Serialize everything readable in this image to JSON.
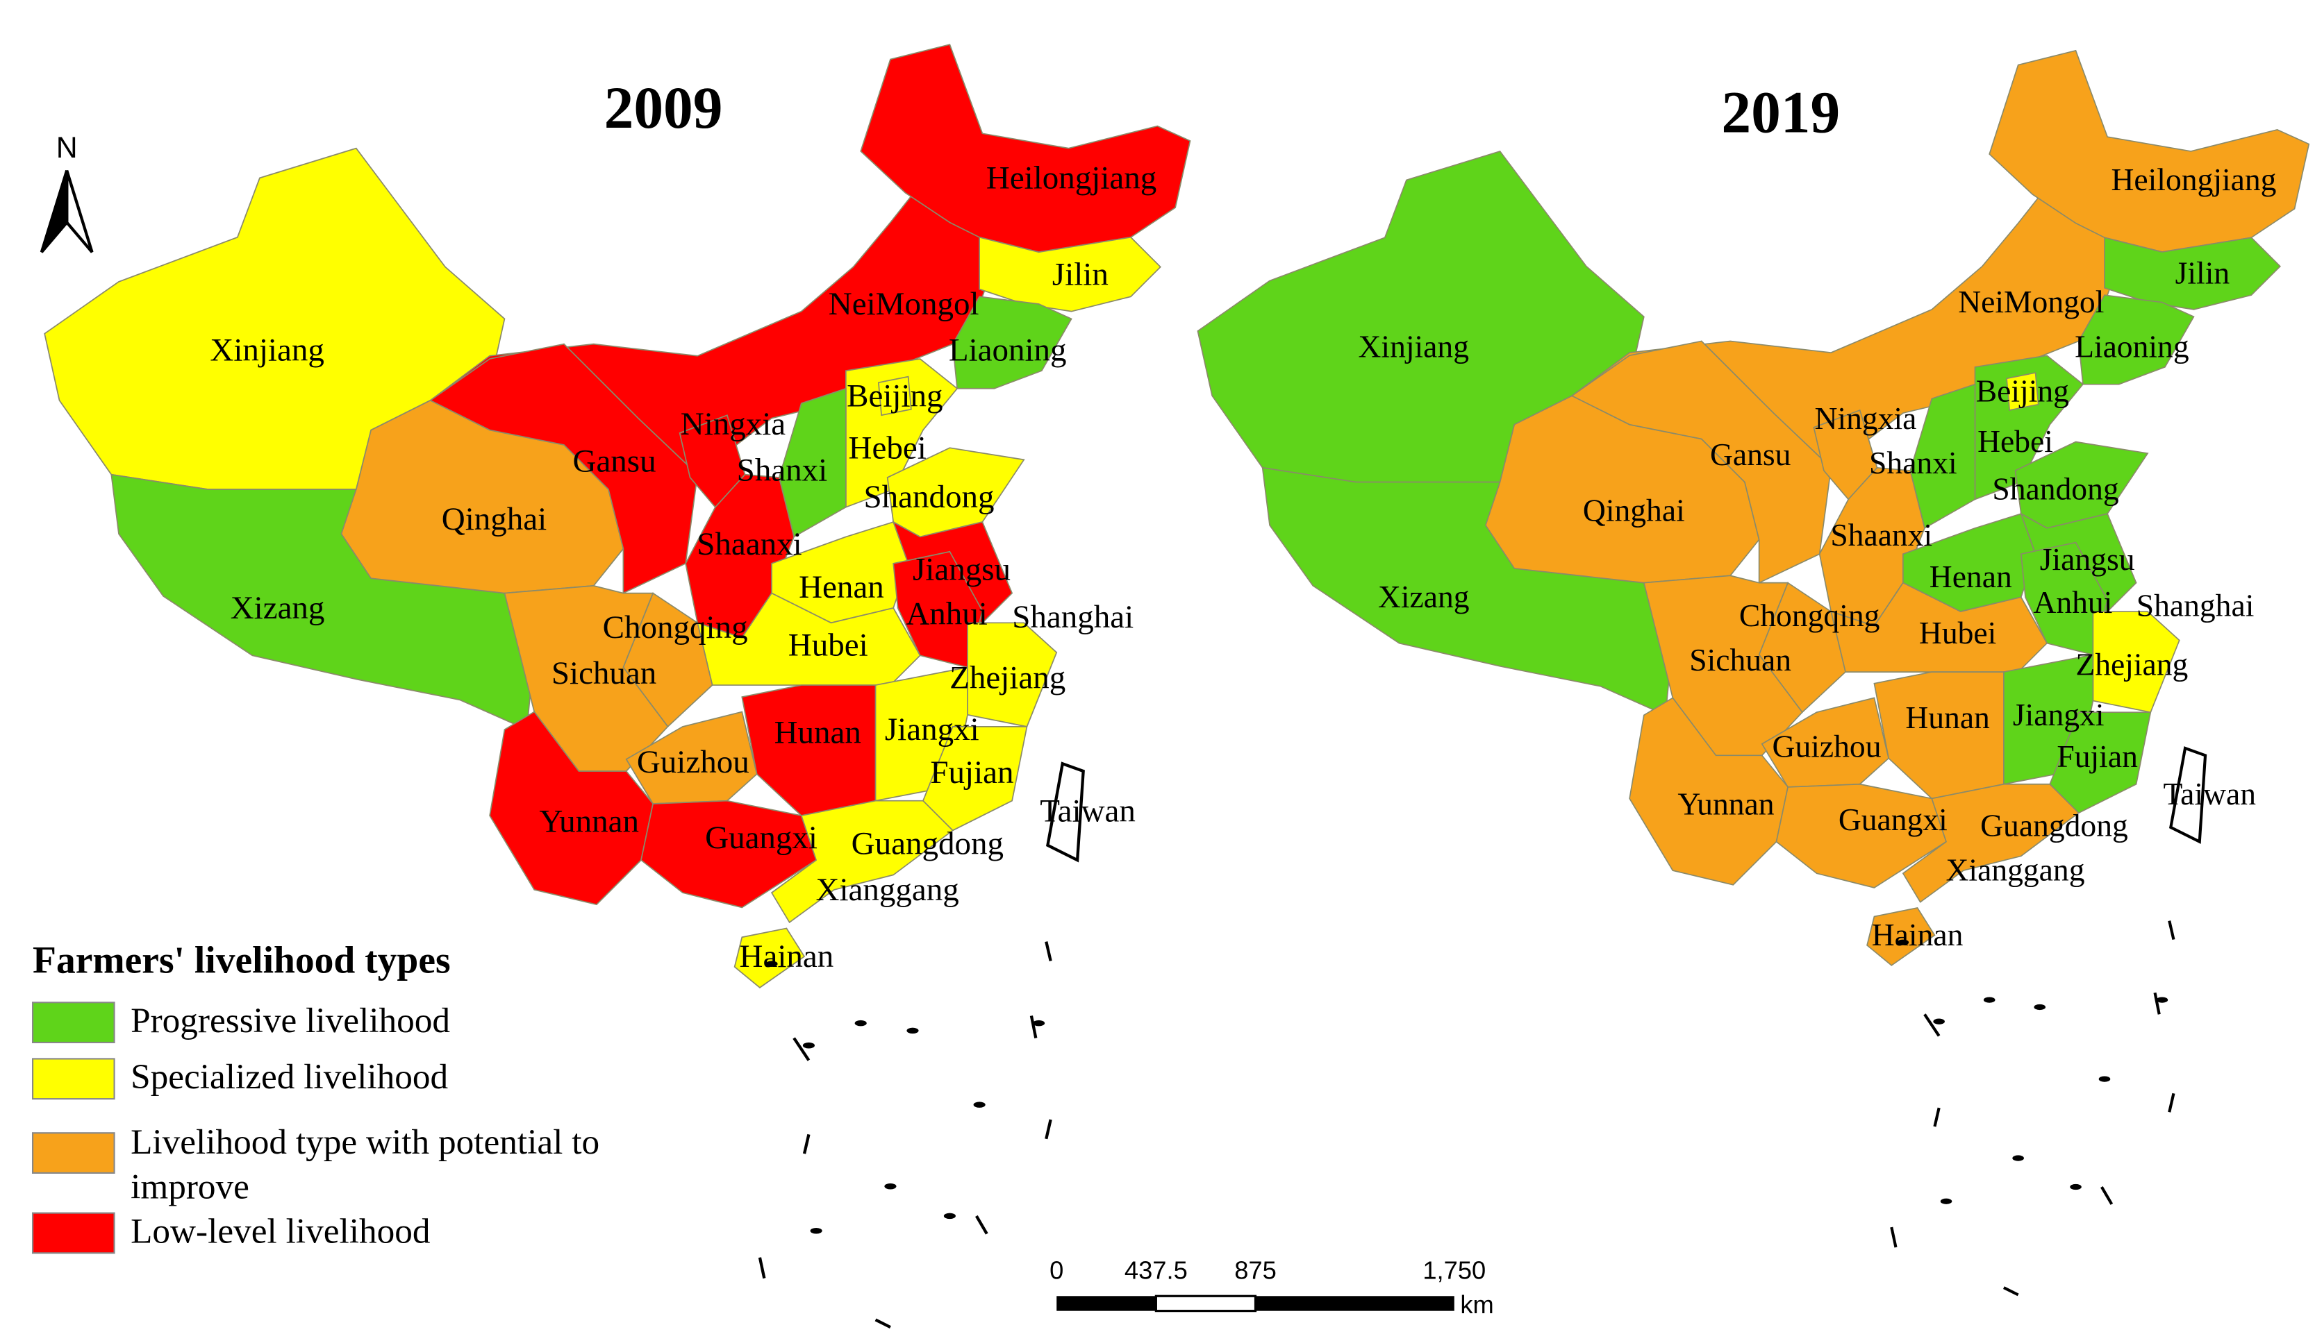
{
  "north_label": "N",
  "legend": {
    "title": "Farmers' livelihood types",
    "items": [
      {
        "label": "Progressive livelihood",
        "color": "#5fd41a"
      },
      {
        "label": "Specialized livelihood",
        "color": "#ffff00"
      },
      {
        "label": "Livelihood type with potential to improve",
        "color": "#f7a21b"
      },
      {
        "label": "Low-level livelihood",
        "color": "#ff0000"
      }
    ]
  },
  "scale_bar": {
    "labels": [
      "0",
      "437.5",
      "875",
      "1,750"
    ],
    "unit": "km"
  },
  "maps": [
    {
      "title": "2009",
      "regions": [
        {
          "name": "Xinjiang",
          "type": 1
        },
        {
          "name": "Xizang",
          "type": 0
        },
        {
          "name": "Qinghai",
          "type": 2
        },
        {
          "name": "NeiMongol",
          "type": 3
        },
        {
          "name": "Gansu",
          "type": 3
        },
        {
          "name": "Ningxia",
          "type": 3
        },
        {
          "name": "Heilongjiang",
          "type": 3
        },
        {
          "name": "Jilin",
          "type": 1
        },
        {
          "name": "Liaoning",
          "type": 0
        },
        {
          "name": "Hebei",
          "type": 1
        },
        {
          "name": "Beijing",
          "type": 1
        },
        {
          "name": "Shanxi",
          "type": 0
        },
        {
          "name": "Shaanxi",
          "type": 3
        },
        {
          "name": "Shandong",
          "type": 1
        },
        {
          "name": "Henan",
          "type": 1
        },
        {
          "name": "Jiangsu",
          "type": 3
        },
        {
          "name": "Anhui",
          "type": 3
        },
        {
          "name": "Shanghai",
          "type": 1
        },
        {
          "name": "Hubei",
          "type": 1
        },
        {
          "name": "Chongqing",
          "type": 2
        },
        {
          "name": "Sichuan",
          "type": 2
        },
        {
          "name": "Zhejiang",
          "type": 1
        },
        {
          "name": "Hunan",
          "type": 3
        },
        {
          "name": "Jiangxi",
          "type": 1
        },
        {
          "name": "Fujian",
          "type": 1
        },
        {
          "name": "Guizhou",
          "type": 2
        },
        {
          "name": "Yunnan",
          "type": 3
        },
        {
          "name": "Guangxi",
          "type": 3
        },
        {
          "name": "Guangdong",
          "type": 1
        },
        {
          "name": "Xianggang",
          "type": 1
        },
        {
          "name": "Hainan",
          "type": 1
        },
        {
          "name": "Taiwan",
          "type": null
        }
      ]
    },
    {
      "title": "2019",
      "regions": [
        {
          "name": "Xinjiang",
          "type": 0
        },
        {
          "name": "Xizang",
          "type": 0
        },
        {
          "name": "Qinghai",
          "type": 2
        },
        {
          "name": "NeiMongol",
          "type": 2
        },
        {
          "name": "Gansu",
          "type": 2
        },
        {
          "name": "Ningxia",
          "type": 2
        },
        {
          "name": "Heilongjiang",
          "type": 2
        },
        {
          "name": "Jilin",
          "type": 0
        },
        {
          "name": "Liaoning",
          "type": 0
        },
        {
          "name": "Hebei",
          "type": 0
        },
        {
          "name": "Beijing",
          "type": 1
        },
        {
          "name": "Shanxi",
          "type": 0
        },
        {
          "name": "Shaanxi",
          "type": 2
        },
        {
          "name": "Shandong",
          "type": 0
        },
        {
          "name": "Henan",
          "type": 0
        },
        {
          "name": "Jiangsu",
          "type": 0
        },
        {
          "name": "Anhui",
          "type": 0
        },
        {
          "name": "Shanghai",
          "type": 0
        },
        {
          "name": "Hubei",
          "type": 2
        },
        {
          "name": "Chongqing",
          "type": 2
        },
        {
          "name": "Sichuan",
          "type": 2
        },
        {
          "name": "Zhejiang",
          "type": 1
        },
        {
          "name": "Hunan",
          "type": 2
        },
        {
          "name": "Jiangxi",
          "type": 0
        },
        {
          "name": "Fujian",
          "type": 0
        },
        {
          "name": "Guizhou",
          "type": 2
        },
        {
          "name": "Yunnan",
          "type": 2
        },
        {
          "name": "Guangxi",
          "type": 2
        },
        {
          "name": "Guangdong",
          "type": 2
        },
        {
          "name": "Xianggang",
          "type": 2
        },
        {
          "name": "Hainan",
          "type": 2
        },
        {
          "name": "Taiwan",
          "type": null
        }
      ]
    }
  ]
}
